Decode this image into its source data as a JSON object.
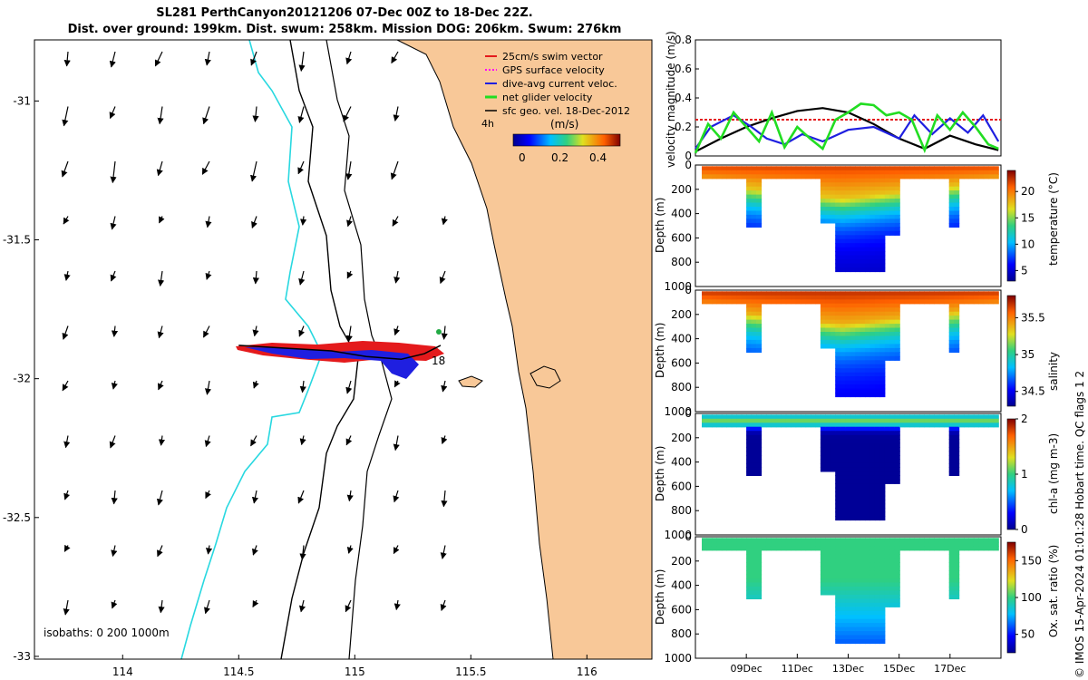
{
  "title": {
    "line1": "SL281 PerthCanyon20121206 07-Dec 00Z to 18-Dec 22Z.",
    "line2": "Dist. over ground: 199km. Dist. swum: 258km. Mission DOG: 206km. Swum: 276km"
  },
  "credit": "© IMOS 15-Apr-2024 01:01:28 Hobart time. QC flags 1  2",
  "colors": {
    "land": "#f8c898",
    "swim": "#e41a1c",
    "gps": "#ff00ff",
    "current": "#1f1fe0",
    "net_glider": "#22dd22",
    "sfc": "#000000",
    "contour_200": "#20d0d8"
  },
  "chart_data": [
    {
      "type": "map",
      "xlabel": "",
      "ylabel": "",
      "xlim": [
        113.62,
        116.28
      ],
      "ylim": [
        -33.01,
        -30.78
      ],
      "xticks": [
        "114",
        "114.5",
        "115",
        "115.5",
        "116"
      ],
      "xtick_values": [
        114,
        114.5,
        115,
        115.5,
        116
      ],
      "yticks": [
        "-31",
        "-31.5",
        "-32",
        "-32.5",
        "-33"
      ],
      "ytick_values": [
        -31,
        -31.5,
        -32,
        -32.5,
        -33
      ],
      "legend": [
        {
          "label": "25cm/s swim vector",
          "key": "swim"
        },
        {
          "label": "GPS surface velocity",
          "key": "gps"
        },
        {
          "label": "dive-avg current veloc.",
          "key": "current"
        },
        {
          "label": "net glider velocity",
          "key": "net_glider"
        },
        {
          "label": "sfc geo. vel. 18-Dec-2012",
          "key": "sfc"
        }
      ],
      "vector_key_label": "4h",
      "colorbar": {
        "label": "(m/s)",
        "ticks": [
          "0",
          "0.2",
          "0.4"
        ],
        "range": [
          0,
          0.5
        ]
      },
      "isobath_label": "isobaths: 0   200  1000m",
      "track_end_label": "18",
      "track": {
        "lon": [
          114.5,
          114.7,
          114.9,
          115.05,
          115.2,
          115.3,
          115.37
        ],
        "lat": [
          -31.88,
          -31.89,
          -31.9,
          -31.92,
          -31.93,
          -31.91,
          -31.88
        ]
      }
    },
    {
      "type": "line",
      "ylabel": "velocity magnitude (m/s)",
      "ylim": [
        0,
        0.8
      ],
      "yticks": [
        "0",
        "0.2",
        "0.4",
        "0.6",
        "0.8"
      ],
      "xlim": [
        7,
        19
      ],
      "series": [
        {
          "name": "swim",
          "key": "swim",
          "x": [
            7,
            19
          ],
          "values": [
            0.25,
            0.25
          ]
        },
        {
          "name": "sfc geo",
          "key": "sfc",
          "x": [
            7,
            8,
            9,
            10,
            11,
            12,
            13,
            14,
            15,
            16,
            17,
            18,
            18.9
          ],
          "values": [
            0.03,
            0.12,
            0.2,
            0.26,
            0.31,
            0.33,
            0.3,
            0.22,
            0.12,
            0.05,
            0.14,
            0.08,
            0.04
          ]
        },
        {
          "name": "current",
          "key": "current",
          "x": [
            7,
            7.6,
            8.5,
            9.2,
            9.8,
            10.5,
            11.2,
            12,
            13,
            14,
            15,
            15.6,
            16.3,
            17,
            17.7,
            18.3,
            18.9
          ],
          "values": [
            0.05,
            0.2,
            0.28,
            0.2,
            0.12,
            0.08,
            0.15,
            0.1,
            0.18,
            0.2,
            0.12,
            0.28,
            0.15,
            0.26,
            0.16,
            0.28,
            0.1
          ]
        },
        {
          "name": "net glider",
          "key": "net_glider",
          "x": [
            7,
            7.5,
            8,
            8.5,
            9,
            9.5,
            10,
            10.5,
            11,
            11.5,
            12,
            12.5,
            13,
            13.5,
            14,
            14.5,
            15,
            15.5,
            16,
            16.5,
            17,
            17.5,
            18,
            18.5,
            18.9
          ],
          "values": [
            0.02,
            0.22,
            0.12,
            0.3,
            0.2,
            0.1,
            0.3,
            0.06,
            0.2,
            0.12,
            0.05,
            0.25,
            0.3,
            0.36,
            0.35,
            0.28,
            0.3,
            0.25,
            0.04,
            0.28,
            0.18,
            0.3,
            0.2,
            0.08,
            0.05
          ]
        }
      ]
    },
    {
      "type": "heatmap",
      "variables": [
        {
          "name": "temperature",
          "cbar_label": "temperature (°C)",
          "cbar_ticks": [
            "5",
            "10",
            "15",
            "20"
          ],
          "cbar_values": [
            5,
            10,
            15,
            20
          ],
          "range": [
            3,
            24
          ],
          "surface": 22,
          "deep": 4,
          "palette": "jet"
        },
        {
          "name": "salinity",
          "cbar_label": "salinity",
          "cbar_ticks": [
            "34.5",
            "35",
            "35.5"
          ],
          "cbar_values": [
            34.5,
            35,
            35.5
          ],
          "range": [
            34.3,
            35.8
          ],
          "surface": 35.7,
          "deep": 34.45,
          "palette": "jet"
        },
        {
          "name": "chl-a",
          "cbar_label": "chl-a (mg m-3)",
          "cbar_ticks": [
            "0",
            "1",
            "2"
          ],
          "cbar_values": [
            0,
            1,
            2
          ],
          "range": [
            0,
            2
          ],
          "surface": 1.1,
          "deep": 0.02,
          "palette": "jet"
        },
        {
          "name": "oxygen",
          "cbar_label": "Ox. sat. ratio (%)",
          "cbar_ticks": [
            "50",
            "100",
            "150"
          ],
          "cbar_values": [
            50,
            100,
            150
          ],
          "range": [
            25,
            175
          ],
          "surface": 100,
          "deep": 60,
          "palette": "jet"
        }
      ],
      "ylabel": "Depth (m)",
      "ylim": [
        0,
        1000
      ],
      "yticks": [
        "0",
        "200",
        "400",
        "600",
        "800",
        "1000"
      ],
      "xlim": [
        7,
        19
      ],
      "xticks": [
        "09Dec",
        "11Dec",
        "13Dec",
        "15Dec",
        "17Dec"
      ],
      "xtick_values": [
        9,
        11,
        13,
        15,
        17
      ],
      "max_depth_profile": {
        "day": [
          7.25,
          9.0,
          9.05,
          9.6,
          9.65,
          11.8,
          11.85,
          12.5,
          12.55,
          14.3,
          14.35,
          14.9,
          14.95,
          16.9,
          16.95,
          17.2,
          17.25,
          18.9
        ],
        "depth": [
          100,
          100,
          520,
          520,
          100,
          100,
          480,
          480,
          880,
          880,
          560,
          560,
          100,
          100,
          500,
          500,
          100,
          100
        ]
      }
    }
  ]
}
